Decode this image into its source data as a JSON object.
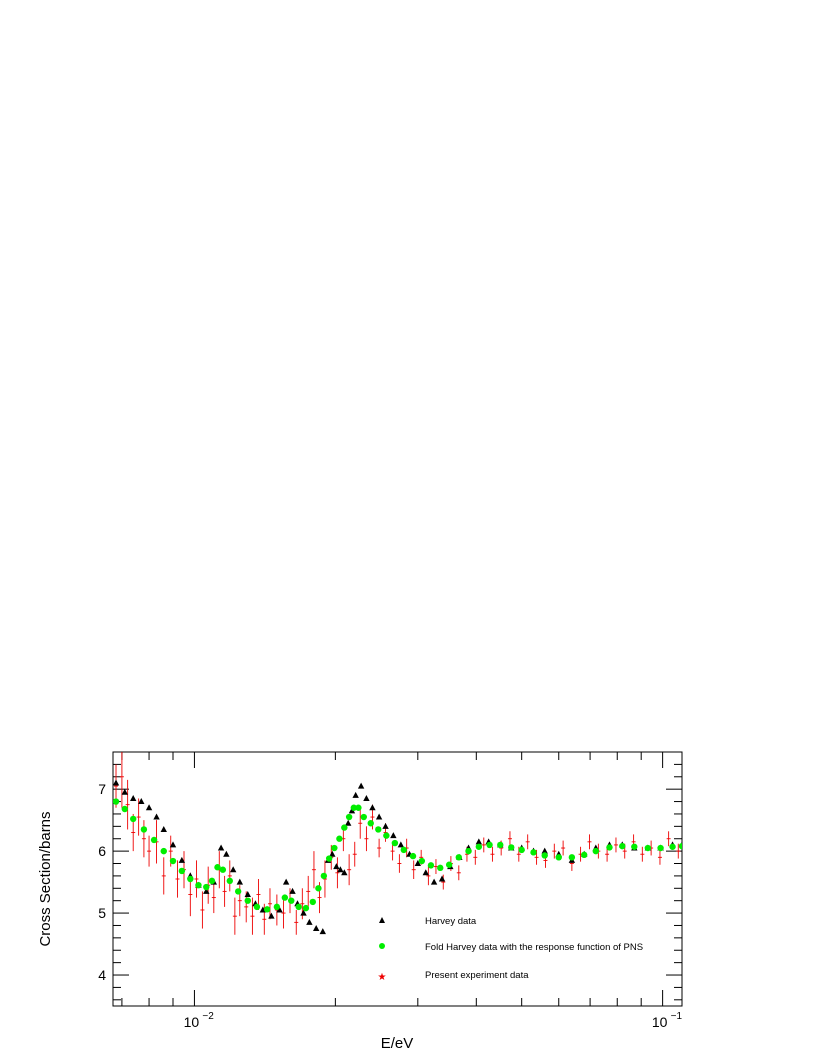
{
  "chart_data": {
    "type": "scatter",
    "title": "",
    "xlabel": "E/eV",
    "ylabel": "Cross Section/barns",
    "x_scale": "log",
    "xlim": [
      0.0067,
      0.11
    ],
    "ylim": [
      3.5,
      7.6
    ],
    "y_ticks": [
      4,
      5,
      6,
      7
    ],
    "x_major_ticks": [
      0.01,
      0.1
    ],
    "x_tick_labels": [
      {
        "value": 0.01,
        "base": "10",
        "exponent": "−2"
      },
      {
        "value": 0.1,
        "base": "10",
        "exponent": "−1"
      }
    ],
    "legend_position": "bottom-center",
    "grid": false,
    "series": [
      {
        "name": "Harvey data",
        "marker": "triangle",
        "color": "#000000",
        "x": [
          0.0068,
          0.0071,
          0.0074,
          0.0077,
          0.008,
          0.0083,
          0.0086,
          0.009,
          0.0094,
          0.0098,
          0.0102,
          0.0106,
          0.011,
          0.0114,
          0.0117,
          0.0121,
          0.0125,
          0.013,
          0.0135,
          0.014,
          0.0146,
          0.0152,
          0.0157,
          0.0162,
          0.0166,
          0.0171,
          0.0176,
          0.0182,
          0.0188,
          0.0193,
          0.0197,
          0.0201,
          0.0205,
          0.0209,
          0.0213,
          0.0217,
          0.0221,
          0.0227,
          0.0233,
          0.024,
          0.0248,
          0.0256,
          0.0266,
          0.0276,
          0.0288,
          0.03,
          0.0312,
          0.0325,
          0.0338,
          0.0352,
          0.0368,
          0.0385,
          0.0405,
          0.0425,
          0.045,
          0.0475,
          0.05,
          0.053,
          0.056,
          0.06,
          0.064,
          0.068,
          0.072,
          0.077,
          0.082,
          0.087,
          0.093,
          0.099,
          0.105,
          0.11
        ],
        "y": [
          7.1,
          6.95,
          6.85,
          6.8,
          6.7,
          6.55,
          6.35,
          6.1,
          5.85,
          5.6,
          5.45,
          5.35,
          5.5,
          6.05,
          5.95,
          5.7,
          5.5,
          5.3,
          5.15,
          5.05,
          4.95,
          5.05,
          5.5,
          5.35,
          5.15,
          5.0,
          4.85,
          4.75,
          4.7,
          5.85,
          5.95,
          5.75,
          5.7,
          5.65,
          6.45,
          6.65,
          6.9,
          7.05,
          6.85,
          6.7,
          6.55,
          6.4,
          6.25,
          6.1,
          5.95,
          5.8,
          5.65,
          5.5,
          5.55,
          5.75,
          5.9,
          6.05,
          6.15,
          6.15,
          6.1,
          6.05,
          6.05,
          6.0,
          6.0,
          5.95,
          5.85,
          5.95,
          6.05,
          6.1,
          6.1,
          6.05,
          6.05,
          6.05,
          6.1,
          6.1
        ]
      },
      {
        "name": "Fold Harvey data with the response function of PNS",
        "marker": "circle",
        "color": "#00ee00",
        "x": [
          0.0068,
          0.0071,
          0.0074,
          0.0078,
          0.0082,
          0.0086,
          0.009,
          0.0094,
          0.0098,
          0.0102,
          0.0106,
          0.0109,
          0.0112,
          0.0115,
          0.0119,
          0.0124,
          0.013,
          0.0136,
          0.0143,
          0.015,
          0.0156,
          0.0161,
          0.0167,
          0.0173,
          0.0179,
          0.0184,
          0.0189,
          0.0194,
          0.0199,
          0.0204,
          0.0209,
          0.0214,
          0.0219,
          0.0224,
          0.023,
          0.0238,
          0.0247,
          0.0257,
          0.0268,
          0.028,
          0.0293,
          0.0306,
          0.032,
          0.0335,
          0.035,
          0.0367,
          0.0385,
          0.0405,
          0.0427,
          0.045,
          0.0475,
          0.05,
          0.053,
          0.056,
          0.06,
          0.064,
          0.068,
          0.072,
          0.077,
          0.082,
          0.087,
          0.093,
          0.099,
          0.105,
          0.11
        ],
        "y": [
          6.8,
          6.68,
          6.52,
          6.35,
          6.18,
          6.0,
          5.84,
          5.68,
          5.55,
          5.45,
          5.42,
          5.52,
          5.74,
          5.7,
          5.52,
          5.35,
          5.2,
          5.1,
          5.06,
          5.1,
          5.25,
          5.2,
          5.1,
          5.08,
          5.18,
          5.4,
          5.6,
          5.88,
          6.05,
          6.2,
          6.38,
          6.55,
          6.7,
          6.7,
          6.55,
          6.45,
          6.35,
          6.25,
          6.13,
          6.02,
          5.92,
          5.84,
          5.77,
          5.73,
          5.78,
          5.9,
          6.0,
          6.07,
          6.1,
          6.1,
          6.06,
          6.02,
          5.98,
          5.93,
          5.9,
          5.9,
          5.94,
          6.0,
          6.06,
          6.08,
          6.07,
          6.05,
          6.05,
          6.07,
          6.08
        ]
      },
      {
        "name": "Present experiment data",
        "marker": "star",
        "color": "#ee0000",
        "error_bars": true,
        "x": [
          0.0068,
          0.007,
          0.0072,
          0.0074,
          0.0076,
          0.0078,
          0.008,
          0.0083,
          0.0086,
          0.0089,
          0.0092,
          0.0095,
          0.0098,
          0.0101,
          0.0104,
          0.0107,
          0.011,
          0.0113,
          0.0116,
          0.0119,
          0.0122,
          0.0125,
          0.0129,
          0.0133,
          0.0137,
          0.0141,
          0.0145,
          0.015,
          0.0155,
          0.016,
          0.0165,
          0.017,
          0.0175,
          0.018,
          0.0185,
          0.019,
          0.0196,
          0.0202,
          0.0208,
          0.0214,
          0.022,
          0.0226,
          0.0233,
          0.024,
          0.0248,
          0.0256,
          0.0265,
          0.0274,
          0.0284,
          0.0294,
          0.0305,
          0.0316,
          0.0328,
          0.034,
          0.0353,
          0.0367,
          0.0382,
          0.0398,
          0.0415,
          0.0433,
          0.0452,
          0.0472,
          0.0493,
          0.0515,
          0.0538,
          0.0562,
          0.0587,
          0.0613,
          0.064,
          0.0668,
          0.0698,
          0.0729,
          0.0761,
          0.0795,
          0.083,
          0.0867,
          0.0905,
          0.0945,
          0.0987,
          0.103,
          0.108
        ],
        "y": [
          7.05,
          7.2,
          6.75,
          6.3,
          6.55,
          6.2,
          6.0,
          6.15,
          5.6,
          6.0,
          5.55,
          5.7,
          5.3,
          5.55,
          5.05,
          5.45,
          5.25,
          5.7,
          5.35,
          5.6,
          4.95,
          5.2,
          5.1,
          4.95,
          5.3,
          4.9,
          5.15,
          5.05,
          5.0,
          5.2,
          4.85,
          5.15,
          5.35,
          5.7,
          5.25,
          5.55,
          5.9,
          5.65,
          6.2,
          5.7,
          5.95,
          6.45,
          6.2,
          6.55,
          6.05,
          6.3,
          6.0,
          5.8,
          6.05,
          5.7,
          5.9,
          5.6,
          5.75,
          5.5,
          5.8,
          5.65,
          5.95,
          5.9,
          6.1,
          5.95,
          6.05,
          6.2,
          5.95,
          6.15,
          5.9,
          5.85,
          6.0,
          6.05,
          5.8,
          5.95,
          6.15,
          6.0,
          5.95,
          6.1,
          6.0,
          6.15,
          5.95,
          6.05,
          5.9,
          6.2,
          6.0
        ],
        "err": [
          0.35,
          0.5,
          0.4,
          0.3,
          0.3,
          0.3,
          0.25,
          0.35,
          0.3,
          0.25,
          0.3,
          0.3,
          0.35,
          0.3,
          0.3,
          0.3,
          0.25,
          0.3,
          0.25,
          0.25,
          0.3,
          0.25,
          0.25,
          0.3,
          0.25,
          0.25,
          0.25,
          0.25,
          0.25,
          0.2,
          0.2,
          0.25,
          0.25,
          0.3,
          0.25,
          0.3,
          0.2,
          0.25,
          0.2,
          0.25,
          0.2,
          0.25,
          0.2,
          0.2,
          0.15,
          0.15,
          0.15,
          0.15,
          0.15,
          0.15,
          0.12,
          0.15,
          0.12,
          0.12,
          0.12,
          0.12,
          0.12,
          0.12,
          0.12,
          0.12,
          0.12,
          0.12,
          0.12,
          0.12,
          0.12,
          0.12,
          0.12,
          0.12,
          0.12,
          0.12,
          0.12,
          0.12,
          0.12,
          0.12,
          0.12,
          0.12,
          0.12,
          0.12,
          0.12,
          0.12,
          0.12
        ]
      }
    ]
  }
}
